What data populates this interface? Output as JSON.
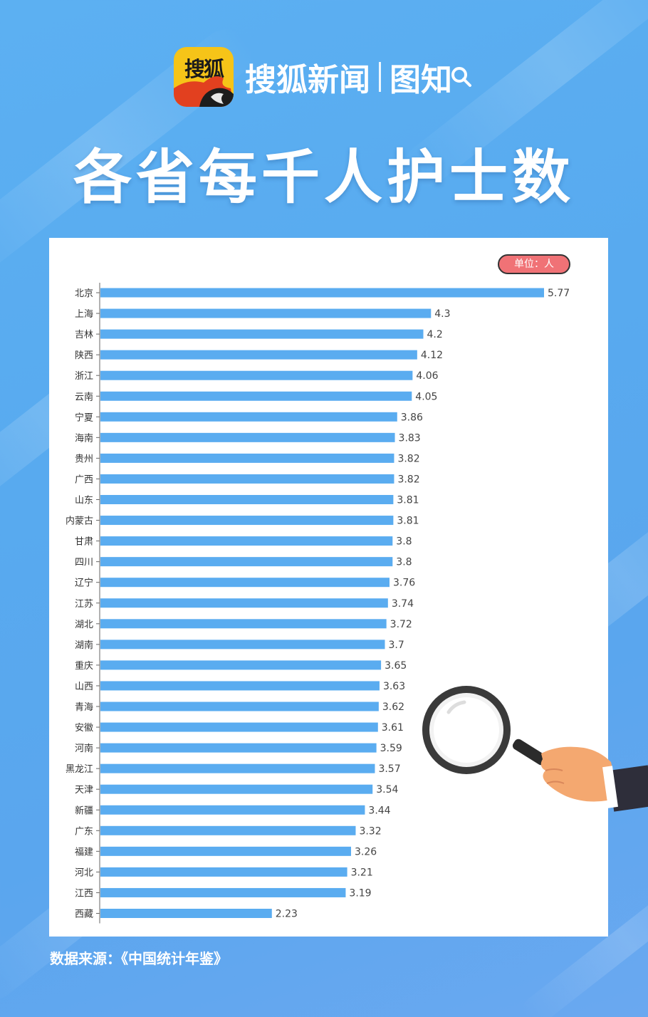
{
  "header": {
    "icon_label": "搜狐",
    "brand_name": "搜狐新闻",
    "brand_section": "图知"
  },
  "title": "各省每千人护士数",
  "unit_badge": "单位：人",
  "source": "数据来源：《中国统计年鉴》",
  "colors": {
    "bar": "#5aacf0",
    "background": "#5cb0f2",
    "badge": "#f07276",
    "axis": "#666666"
  },
  "chart_data": {
    "type": "bar",
    "orientation": "horizontal",
    "categories": [
      "北京",
      "上海",
      "吉林",
      "陕西",
      "浙江",
      "云南",
      "宁夏",
      "海南",
      "贵州",
      "广西",
      "山东",
      "内蒙古",
      "甘肃",
      "四川",
      "辽宁",
      "江苏",
      "湖北",
      "湖南",
      "重庆",
      "山西",
      "青海",
      "安徽",
      "河南",
      "黑龙江",
      "天津",
      "新疆",
      "广东",
      "福建",
      "河北",
      "江西",
      "西藏"
    ],
    "values": [
      5.77,
      4.3,
      4.2,
      4.12,
      4.06,
      4.05,
      3.86,
      3.83,
      3.82,
      3.82,
      3.81,
      3.81,
      3.8,
      3.8,
      3.76,
      3.74,
      3.72,
      3.7,
      3.65,
      3.63,
      3.62,
      3.61,
      3.59,
      3.57,
      3.54,
      3.44,
      3.32,
      3.26,
      3.21,
      3.19,
      2.23
    ],
    "value_labels": [
      "5.77",
      "4.3",
      "4.2",
      "4.12",
      "4.06",
      "4.05",
      "3.86",
      "3.83",
      "3.82",
      "3.82",
      "3.81",
      "3.81",
      "3.8",
      "3.8",
      "3.76",
      "3.74",
      "3.72",
      "3.7",
      "3.65",
      "3.63",
      "3.62",
      "3.61",
      "3.59",
      "3.57",
      "3.54",
      "3.44",
      "3.32",
      "3.26",
      "3.21",
      "3.19",
      "2.23"
    ],
    "xlim": [
      0,
      5.77
    ],
    "grid": false,
    "legend": "none"
  }
}
